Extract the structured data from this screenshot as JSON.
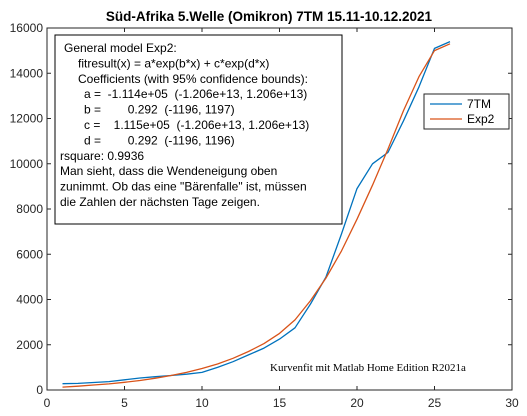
{
  "chart_data": {
    "type": "line",
    "title": "Süd-Afrika 5.Welle (Omikron) 7TM 15.11-10.12.2021",
    "xlabel": "",
    "ylabel": "",
    "xlim": [
      0,
      30
    ],
    "ylim": [
      0,
      16000
    ],
    "xticks": [
      0,
      5,
      10,
      15,
      20,
      25,
      30
    ],
    "yticks": [
      0,
      2000,
      4000,
      6000,
      8000,
      10000,
      12000,
      14000,
      16000
    ],
    "grid": false,
    "legend_position": "right",
    "series": [
      {
        "name": "7TM",
        "color": "#0072BD",
        "x": [
          1,
          2,
          3,
          4,
          5,
          6,
          7,
          8,
          9,
          10,
          11,
          12,
          13,
          14,
          15,
          16,
          17,
          18,
          19,
          20,
          21,
          22,
          23,
          24,
          25,
          26
        ],
        "y": [
          280,
          290,
          330,
          370,
          450,
          530,
          590,
          640,
          700,
          780,
          1000,
          1250,
          1550,
          1850,
          2250,
          2750,
          3800,
          5000,
          6900,
          8900,
          10000,
          10500,
          11900,
          13400,
          15100,
          15400
        ]
      },
      {
        "name": "Exp2",
        "color": "#D95319",
        "x": [
          1,
          2,
          3,
          4,
          5,
          6,
          7,
          8,
          9,
          10,
          11,
          12,
          13,
          14,
          15,
          16,
          17,
          18,
          19,
          20,
          21,
          22,
          23,
          24,
          25,
          26
        ],
        "y": [
          130,
          170,
          220,
          270,
          340,
          420,
          520,
          640,
          780,
          950,
          1150,
          1400,
          1700,
          2050,
          2500,
          3100,
          3950,
          4950,
          6150,
          7550,
          9050,
          10650,
          12350,
          13850,
          15000,
          15300
        ]
      }
    ],
    "annotations": {
      "box_lines": [
        "General model Exp2:",
        "fitresult(x) = a*exp(b*x) + c*exp(d*x)",
        "Coefficients (with 95% confidence bounds):",
        "a =  -1.114e+05  (-1.206e+13, 1.206e+13)",
        "b =        0.292  (-1196, 1197)",
        "c =    1.115e+05  (-1.206e+13, 1.206e+13)",
        "d =        0.292  (-1196, 1196)",
        "rsquare: 0.9936",
        "Man sieht, dass die Wendeneigung oben",
        "zunimmt. Ob das eine \"Bärenfalle\" ist, müssen",
        "die Zahlen der nächsten Tage zeigen."
      ],
      "footer": "Kurvenfit mit Matlab Home Edition R2021a"
    }
  }
}
